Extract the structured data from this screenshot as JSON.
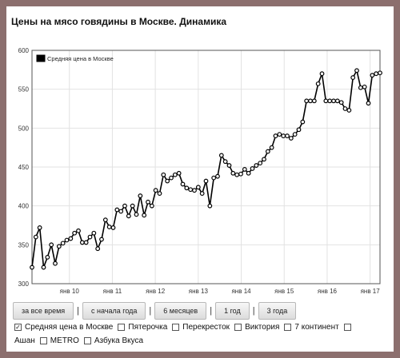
{
  "title": "Цены на мясо говядины в Москве. Динамика",
  "buttons": [
    "за все время",
    "с начала года",
    "6 месяцев",
    "1 год",
    "3 года"
  ],
  "series_options": [
    {
      "label": "Средняя цена в Москве",
      "checked": true
    },
    {
      "label": "Пятерочка",
      "checked": false
    },
    {
      "label": "Перекресток",
      "checked": false
    },
    {
      "label": "Виктория",
      "checked": false
    },
    {
      "label": "7 континент",
      "checked": false
    },
    {
      "label": "Ашан",
      "checked": false
    },
    {
      "label": "METRO",
      "checked": false
    },
    {
      "label": "Азбука Вкуса",
      "checked": false
    }
  ],
  "chart_data": {
    "type": "line",
    "title": "",
    "xlabel": "",
    "ylabel": "",
    "legend": {
      "entries": [
        "Средняя цена в Москве"
      ],
      "placement": "top-left"
    },
    "grid": true,
    "ylim": [
      300,
      600
    ],
    "yticks": [
      300,
      350,
      400,
      450,
      500,
      550,
      600
    ],
    "xlim": [
      2009.13,
      2017.23
    ],
    "xticks": [
      {
        "label": "янв 10",
        "value": 2010
      },
      {
        "label": "янв 11",
        "value": 2011
      },
      {
        "label": "янв 12",
        "value": 2012
      },
      {
        "label": "янв 13",
        "value": 2013
      },
      {
        "label": "янв 14",
        "value": 2014
      },
      {
        "label": "янв 15",
        "value": 2015
      },
      {
        "label": "янв 16",
        "value": 2016
      },
      {
        "label": "янв 17",
        "value": 2017
      }
    ],
    "series": [
      {
        "name": "Средняя цена в Москве",
        "color": "#000000",
        "x": [
          2009.13,
          2009.22,
          2009.31,
          2009.4,
          2009.49,
          2009.58,
          2009.67,
          2009.76,
          2009.85,
          2009.94,
          2010.03,
          2010.12,
          2010.21,
          2010.3,
          2010.39,
          2010.48,
          2010.57,
          2010.66,
          2010.75,
          2010.84,
          2010.93,
          2011.02,
          2011.11,
          2011.2,
          2011.29,
          2011.38,
          2011.47,
          2011.56,
          2011.65,
          2011.74,
          2011.83,
          2011.92,
          2012.01,
          2012.1,
          2012.19,
          2012.28,
          2012.37,
          2012.46,
          2012.55,
          2012.64,
          2012.73,
          2012.82,
          2012.91,
          2013.0,
          2013.09,
          2013.18,
          2013.27,
          2013.36,
          2013.45,
          2013.54,
          2013.63,
          2013.72,
          2013.81,
          2013.9,
          2013.99,
          2014.08,
          2014.17,
          2014.26,
          2014.35,
          2014.44,
          2014.53,
          2014.62,
          2014.71,
          2014.8,
          2014.89,
          2014.98,
          2015.07,
          2015.16,
          2015.25,
          2015.34,
          2015.43,
          2015.52,
          2015.61,
          2015.7,
          2015.79,
          2015.88,
          2015.97,
          2016.06,
          2016.15,
          2016.24,
          2016.33,
          2016.42,
          2016.51,
          2016.6,
          2016.69,
          2016.78,
          2016.87,
          2016.96,
          2017.05,
          2017.14,
          2017.23
        ],
        "y": [
          321,
          360,
          372,
          321,
          334,
          350,
          326,
          348,
          352,
          356,
          358,
          365,
          368,
          353,
          353,
          360,
          365,
          345,
          357,
          382,
          373,
          372,
          395,
          393,
          400,
          387,
          400,
          389,
          413,
          388,
          405,
          400,
          420,
          416,
          440,
          432,
          436,
          440,
          442,
          428,
          423,
          421,
          420,
          424,
          416,
          432,
          400,
          436,
          438,
          465,
          457,
          452,
          442,
          440,
          441,
          447,
          442,
          448,
          452,
          455,
          460,
          470,
          475,
          490,
          492,
          490,
          490,
          487,
          492,
          498,
          508,
          535,
          535,
          535,
          557,
          570,
          535,
          535,
          535,
          535,
          533,
          525,
          523,
          565,
          574,
          552,
          553,
          532,
          568,
          570,
          571
        ]
      }
    ]
  }
}
